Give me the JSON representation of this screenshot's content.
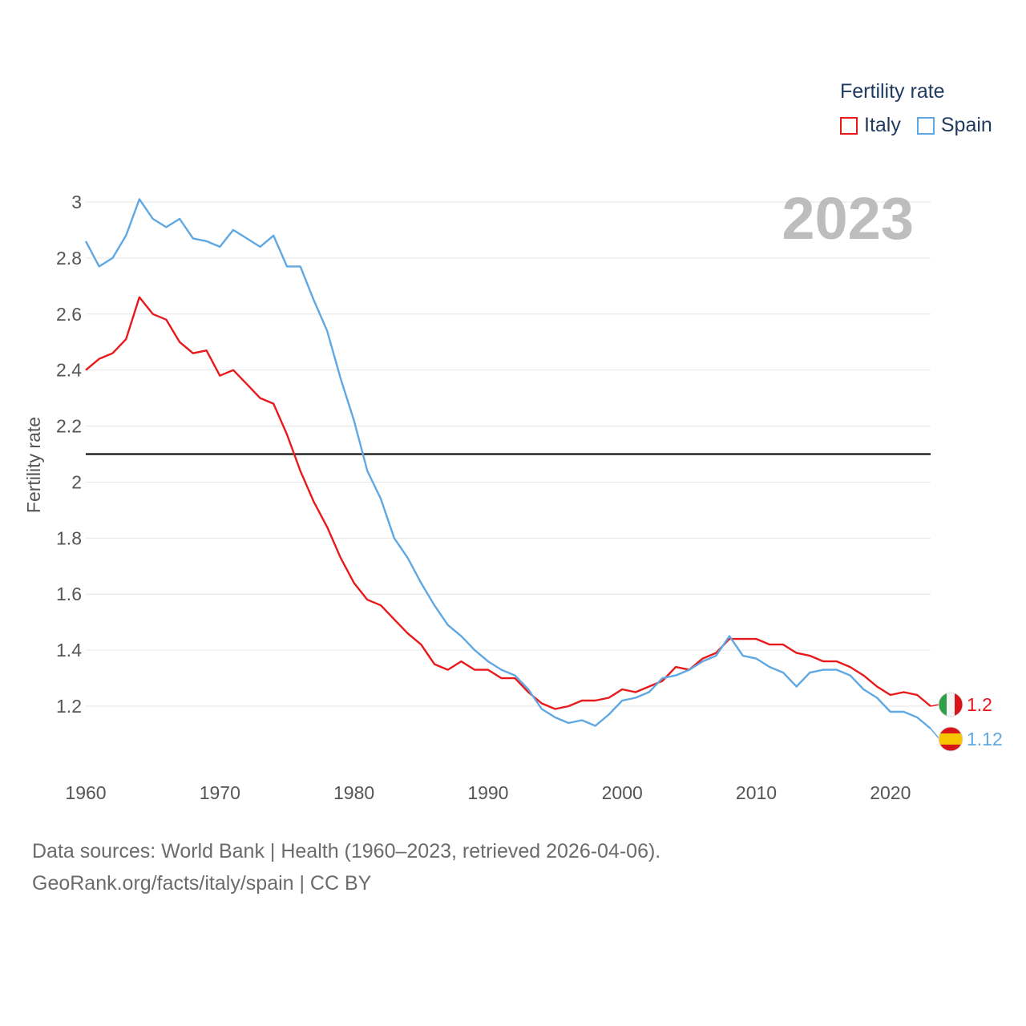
{
  "legend": {
    "title": "Fertility rate",
    "items": [
      {
        "label": "Italy",
        "color": "#e8191b"
      },
      {
        "label": "Spain",
        "color": "#5fa8e3"
      }
    ]
  },
  "source": {
    "line1": "Data sources: World Bank | Health (1960–2023, retrieved 2026-04-06).",
    "line2": "GeoRank.org/facts/italy/spain | CC BY"
  },
  "chart_data": {
    "type": "line",
    "title": "Fertility rate",
    "year_label": "2023",
    "xlabel": "",
    "ylabel": "Fertility rate",
    "xlim": [
      1960,
      2023
    ],
    "ylim": [
      1.08,
      3.1
    ],
    "x_ticks": [
      1960,
      1970,
      1980,
      1990,
      2000,
      2010,
      2020
    ],
    "x_tick_labels": [
      "1960",
      "1970",
      "1980",
      "1990",
      "2000",
      "2010",
      "2020"
    ],
    "y_ticks": [
      1.2,
      1.4,
      1.6,
      1.8,
      2.0,
      2.2,
      2.4,
      2.6,
      2.8,
      3.0
    ],
    "y_tick_labels": [
      "1.2",
      "1.4",
      "1.6",
      "1.8",
      "2",
      "2.2",
      "2.4",
      "2.6",
      "2.8",
      "3"
    ],
    "reference_line": 2.1,
    "x": [
      1960,
      1961,
      1962,
      1963,
      1964,
      1965,
      1966,
      1967,
      1968,
      1969,
      1970,
      1971,
      1972,
      1973,
      1974,
      1975,
      1976,
      1977,
      1978,
      1979,
      1980,
      1981,
      1982,
      1983,
      1984,
      1985,
      1986,
      1987,
      1988,
      1989,
      1990,
      1991,
      1992,
      1993,
      1994,
      1995,
      1996,
      1997,
      1998,
      1999,
      2000,
      2001,
      2002,
      2003,
      2004,
      2005,
      2006,
      2007,
      2008,
      2009,
      2010,
      2011,
      2012,
      2013,
      2014,
      2015,
      2016,
      2017,
      2018,
      2019,
      2020,
      2021,
      2022,
      2023
    ],
    "series": [
      {
        "name": "Italy",
        "color": "#e8191b",
        "end_label": "1.2",
        "values": [
          2.4,
          2.44,
          2.46,
          2.51,
          2.66,
          2.6,
          2.58,
          2.5,
          2.46,
          2.47,
          2.38,
          2.4,
          2.35,
          2.3,
          2.28,
          2.17,
          2.04,
          1.93,
          1.84,
          1.73,
          1.64,
          1.58,
          1.56,
          1.51,
          1.46,
          1.42,
          1.35,
          1.33,
          1.36,
          1.33,
          1.33,
          1.3,
          1.3,
          1.25,
          1.21,
          1.19,
          1.2,
          1.22,
          1.22,
          1.23,
          1.26,
          1.25,
          1.27,
          1.29,
          1.34,
          1.33,
          1.37,
          1.39,
          1.44,
          1.44,
          1.44,
          1.42,
          1.42,
          1.39,
          1.38,
          1.36,
          1.36,
          1.34,
          1.31,
          1.27,
          1.24,
          1.25,
          1.24,
          1.2
        ]
      },
      {
        "name": "Spain",
        "color": "#5fa8e3",
        "end_label": "1.12",
        "values": [
          2.86,
          2.77,
          2.8,
          2.88,
          3.01,
          2.94,
          2.91,
          2.94,
          2.87,
          2.86,
          2.84,
          2.9,
          2.87,
          2.84,
          2.88,
          2.77,
          2.77,
          2.65,
          2.54,
          2.37,
          2.22,
          2.04,
          1.94,
          1.8,
          1.73,
          1.64,
          1.56,
          1.49,
          1.45,
          1.4,
          1.36,
          1.33,
          1.31,
          1.26,
          1.19,
          1.16,
          1.14,
          1.15,
          1.13,
          1.17,
          1.22,
          1.23,
          1.25,
          1.3,
          1.31,
          1.33,
          1.36,
          1.38,
          1.45,
          1.38,
          1.37,
          1.34,
          1.32,
          1.27,
          1.32,
          1.33,
          1.33,
          1.31,
          1.26,
          1.23,
          1.18,
          1.18,
          1.16,
          1.12
        ]
      }
    ]
  }
}
